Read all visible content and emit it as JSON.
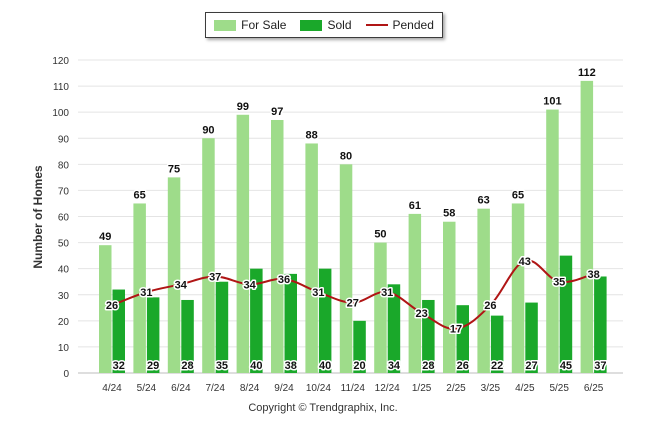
{
  "chart_data": {
    "type": "bar",
    "ylabel": "Number of Homes",
    "xlabel": "",
    "ylim": [
      0,
      120
    ],
    "yticks": [
      0,
      10,
      20,
      30,
      40,
      50,
      60,
      70,
      80,
      90,
      100,
      110,
      120
    ],
    "grid": true,
    "legend_position": "top-center",
    "categories": [
      "4/24",
      "5/24",
      "6/24",
      "7/24",
      "8/24",
      "9/24",
      "10/24",
      "11/24",
      "12/24",
      "1/25",
      "2/25",
      "3/25",
      "4/25",
      "5/25",
      "6/25"
    ],
    "series": [
      {
        "name": "For Sale",
        "kind": "bar",
        "color": "#9edc8a",
        "values": [
          49,
          65,
          75,
          90,
          99,
          97,
          88,
          80,
          50,
          61,
          58,
          63,
          65,
          101,
          112
        ]
      },
      {
        "name": "Sold",
        "kind": "bar",
        "color": "#1aa82a",
        "values": [
          32,
          29,
          28,
          35,
          40,
          38,
          40,
          20,
          34,
          28,
          26,
          22,
          27,
          45,
          37
        ]
      },
      {
        "name": "Pended",
        "kind": "line",
        "color": "#b01515",
        "values": [
          26,
          31,
          34,
          37,
          34,
          36,
          31,
          27,
          31,
          23,
          17,
          26,
          43,
          35,
          38
        ]
      }
    ]
  },
  "footer": {
    "copyright": "Copyright © Trendgraphix, Inc."
  }
}
